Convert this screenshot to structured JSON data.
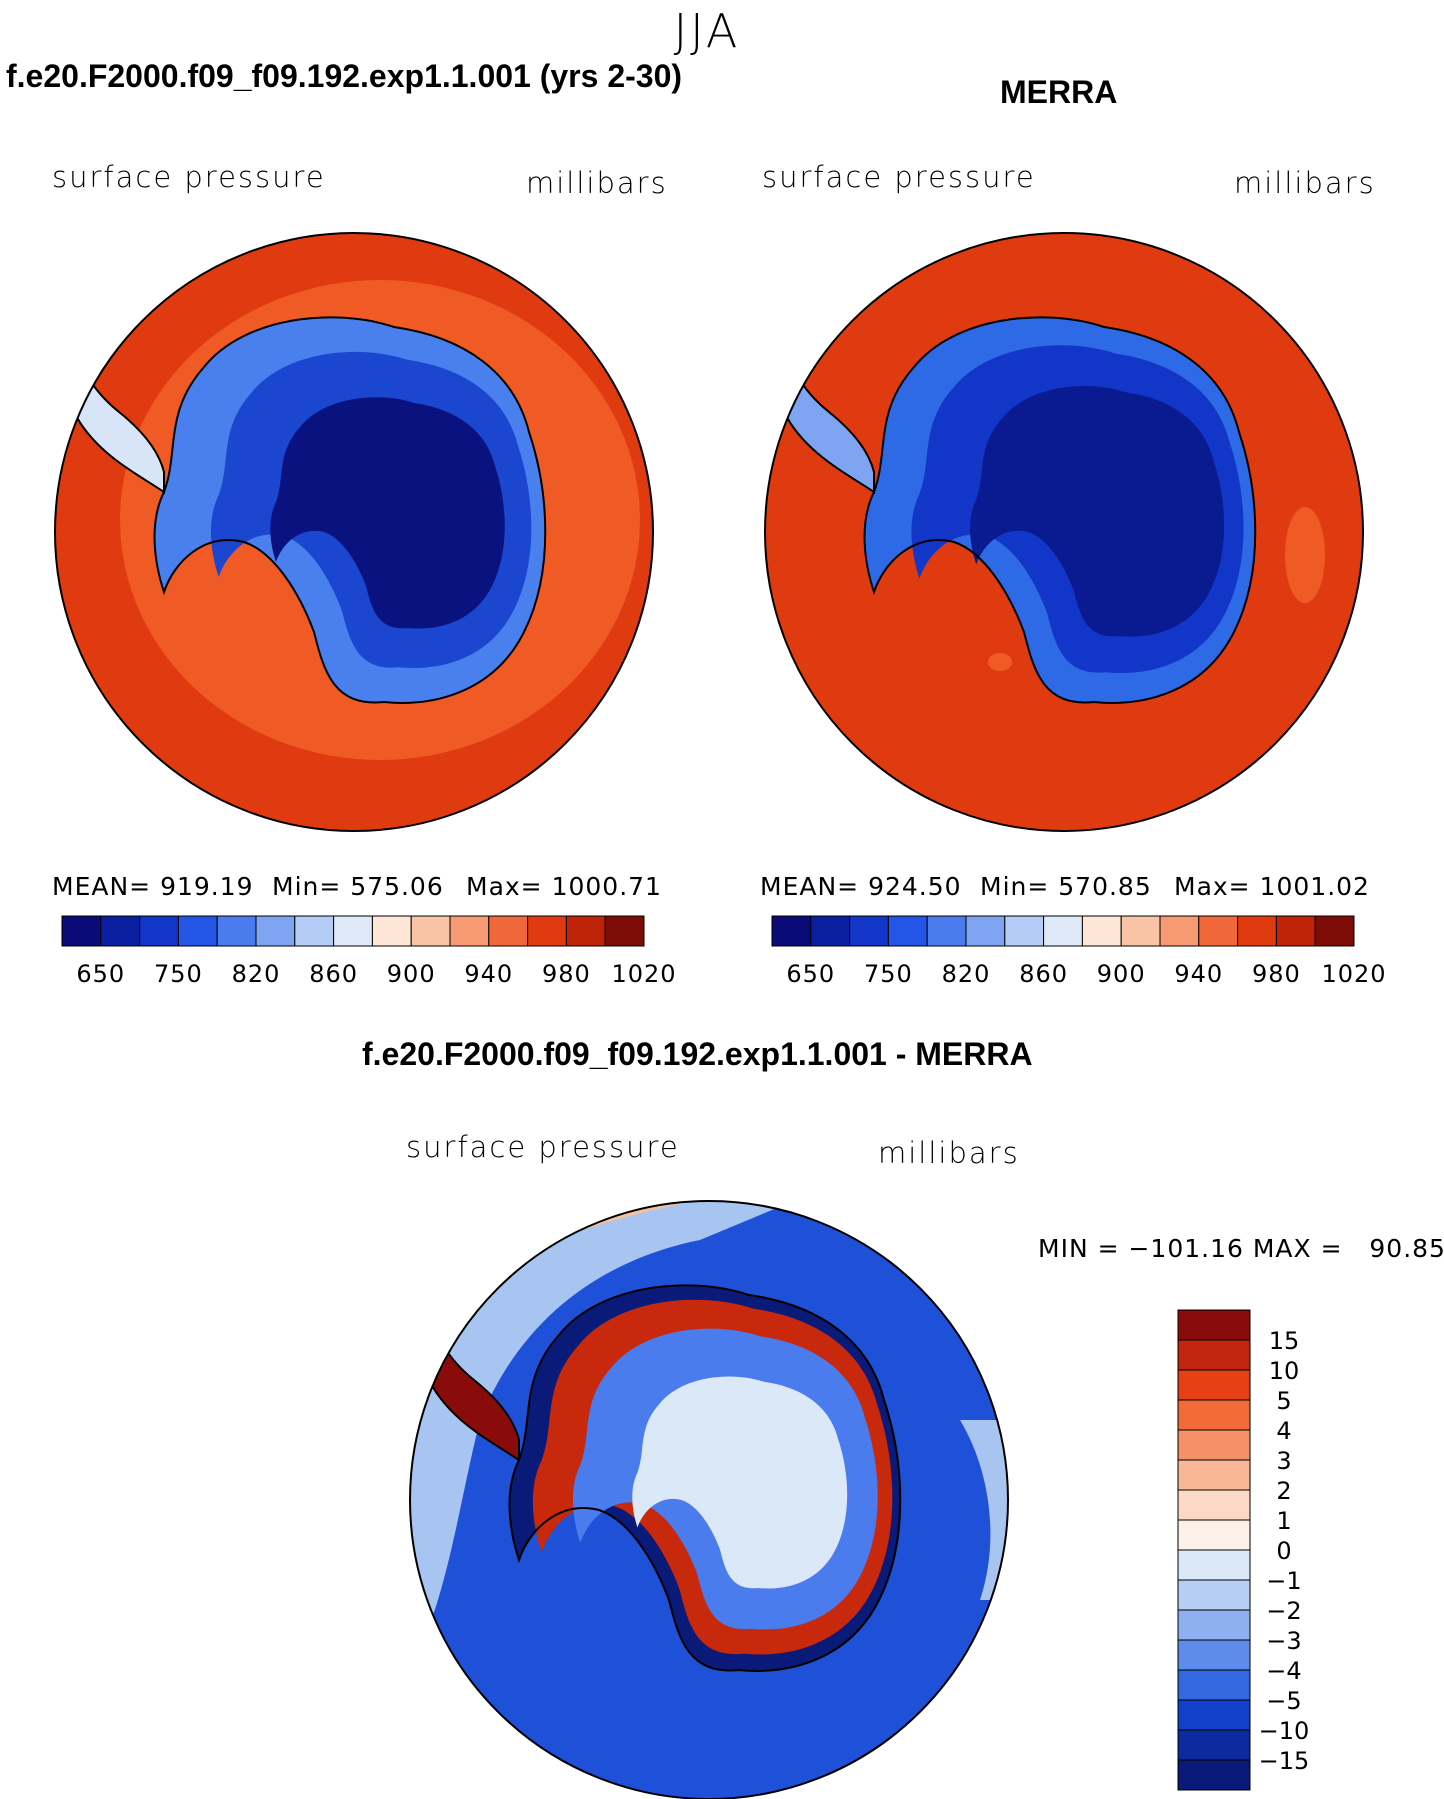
{
  "figure_title": "JJA",
  "panel_left": {
    "case_title": "f.e20.F2000.f09_f09.192.exp1.1.001 (yrs 2-30)",
    "variable": "surface pressure",
    "units": "millibars",
    "mean": "MEAN= 919.19",
    "min": "Min= 575.06",
    "max": "Max= 1000.71"
  },
  "panel_right": {
    "case_title": "MERRA",
    "variable": "surface pressure",
    "units": "millibars",
    "mean": "MEAN= 924.50",
    "min": "Min= 570.85",
    "max": "Max= 1001.02"
  },
  "panel_diff": {
    "case_title": "f.e20.F2000.f09_f09.192.exp1.1.001 - MERRA",
    "variable": "surface pressure",
    "units": "millibars",
    "minmax": "MIN = −101.16 MAX =   90.85"
  },
  "colorbar_abs": {
    "labels": [
      "650",
      "750",
      "820",
      "860",
      "900",
      "940",
      "980",
      "1020"
    ],
    "colors": [
      "#0a0a78",
      "#0a1fa0",
      "#1236c8",
      "#2356e6",
      "#4a7cee",
      "#7ea4f2",
      "#b4ccf6",
      "#dfe9f8",
      "#fde6d6",
      "#f9c4a6",
      "#f59a72",
      "#f0673a",
      "#e03a10",
      "#c02408",
      "#7e0c06"
    ]
  },
  "colorbar_diff": {
    "labels": [
      "15",
      "10",
      "5",
      "4",
      "3",
      "2",
      "1",
      "0",
      "−1",
      "−2",
      "−3",
      "−4",
      "−5",
      "−10",
      "−15"
    ],
    "colors": [
      "#8a0b0b",
      "#c3260f",
      "#e64114",
      "#f26a37",
      "#f59166",
      "#f8b797",
      "#fbd9c6",
      "#fdf0e6",
      "#dbe8f7",
      "#b6cdf4",
      "#8db0f0",
      "#5d8cea",
      "#3468e0",
      "#1240c8",
      "#0d2aa0",
      "#0a1a78"
    ]
  },
  "map_colors": {
    "ocean_high": "#e03a10",
    "ocean_mid": "#f05a25",
    "land_deep": "#0a1280",
    "land_mid": "#1a46d0",
    "land_edge": "#4a80ee",
    "diff_ocean": "#1e50d8",
    "diff_light": "#a8c4f0",
    "diff_warm": "#f8c0a0",
    "diff_red": "#c8280c"
  }
}
